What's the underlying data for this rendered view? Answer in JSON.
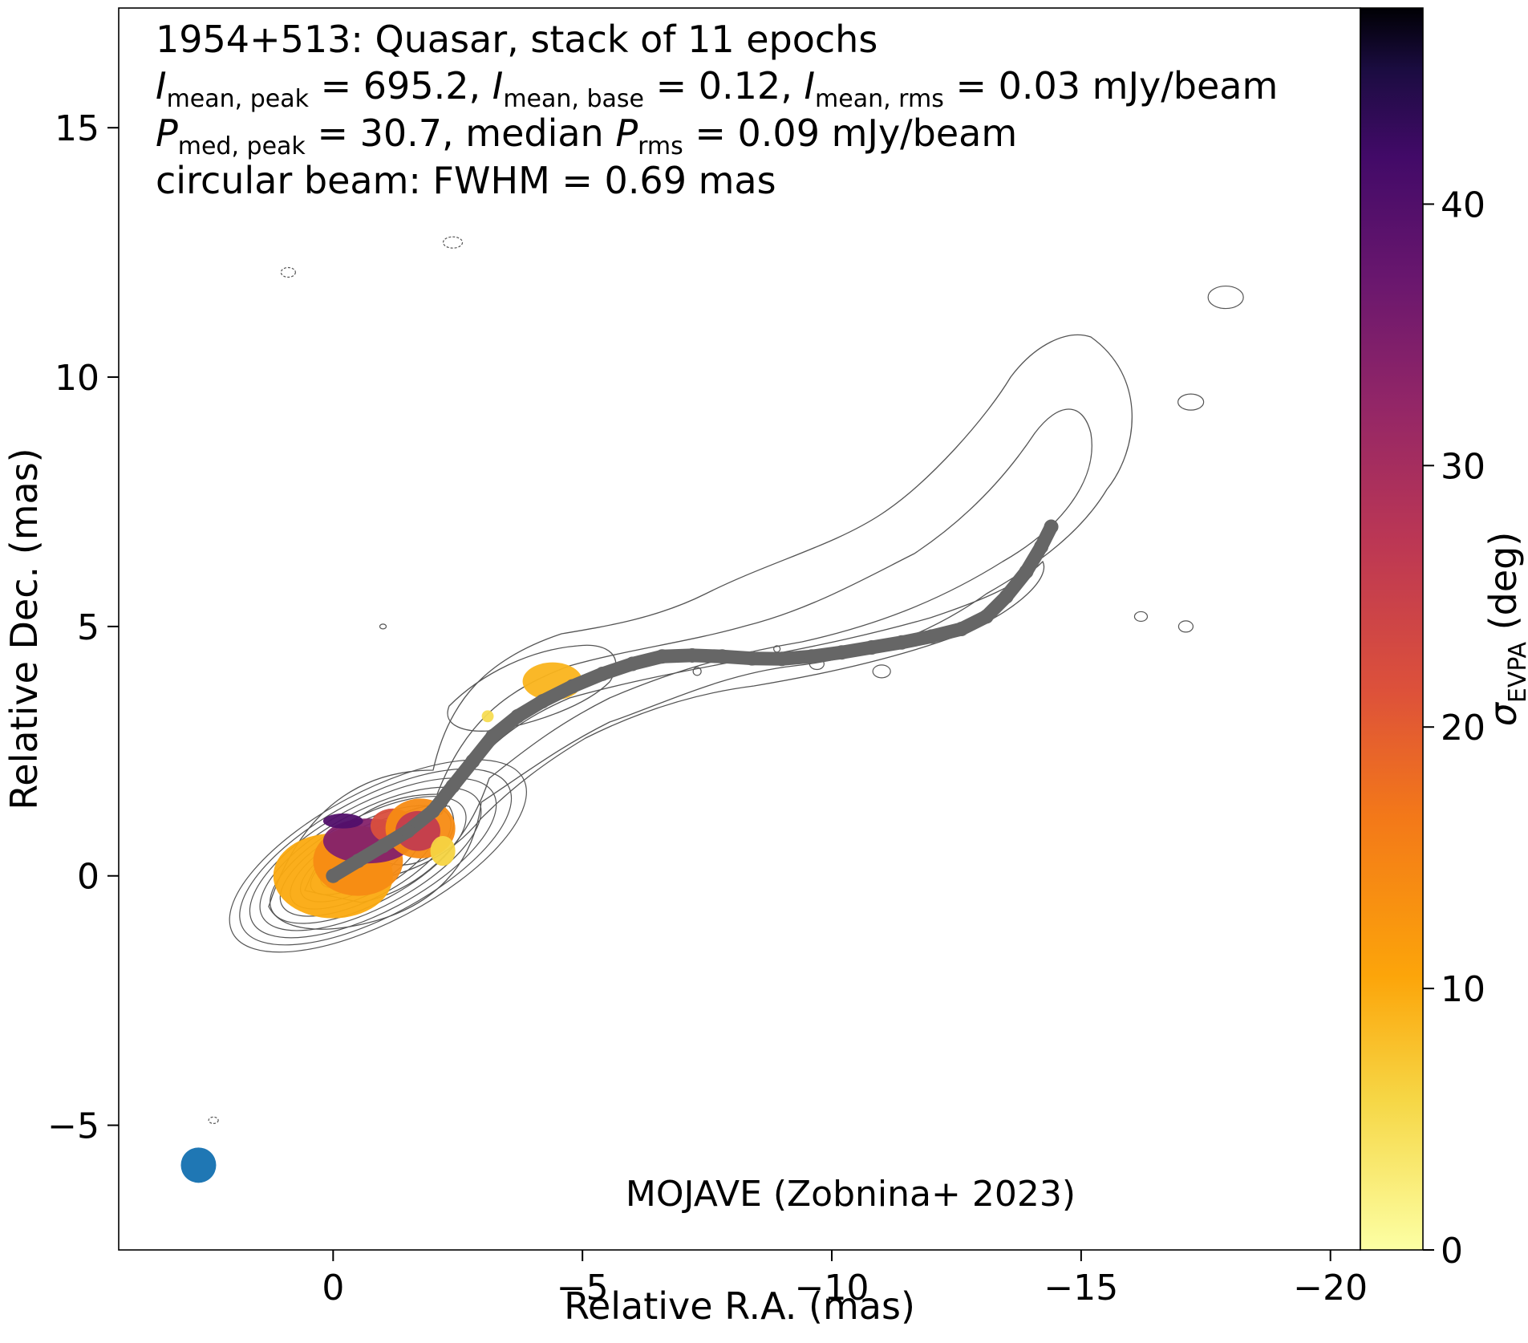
{
  "header": {
    "line1": "1954+513: Quasar, stack of 11 epochs",
    "line2": {
      "i_label": "I",
      "peak_sub": "mean, peak",
      "peak_value": "= 695.2,",
      "base_sub": "mean, base",
      "base_value": "= 0.12,",
      "rms_sub": "mean, rms",
      "rms_value": "= 0.03 mJy/beam"
    },
    "line3": {
      "p_label": "P",
      "peak_sub": "med, peak",
      "peak_value": "= 30.7, median",
      "rms_sub": "rms",
      "rms_value": "= 0.09 mJy/beam"
    },
    "line4": "circular beam: FWHM = 0.69 mas"
  },
  "credit": "MOJAVE (Zobnina+ 2023)",
  "colors": {
    "ridge": "#666666",
    "beam": "#1f77b4",
    "contour": "#555555"
  },
  "chart_data": {
    "type": "heatmap",
    "xlabel": "Relative R.A. (mas)",
    "ylabel": "Relative Dec. (mas)",
    "xlim": [
      4.3,
      -20.6
    ],
    "ylim": [
      -7.5,
      17.4
    ],
    "xticks": [
      0,
      -5,
      -10,
      -15,
      -20
    ],
    "xtick_labels": [
      "0",
      "−5",
      "−10",
      "−15",
      "−20"
    ],
    "yticks": [
      -5,
      0,
      5,
      10,
      15
    ],
    "ytick_labels": [
      "−5",
      "0",
      "5",
      "10",
      "15"
    ],
    "colorbar": {
      "label": "σ",
      "label_sub": "EVPA",
      "label_unit": "(deg)",
      "range": [
        0,
        47.5
      ],
      "ticks": [
        0,
        10,
        20,
        30,
        40
      ],
      "colormap": "inferno_r"
    },
    "beam": {
      "x": 2.7,
      "y": -5.8,
      "fwhm": 0.69
    },
    "ridge_line": {
      "x": [
        0,
        -0.5,
        -1.0,
        -1.5,
        -2.0,
        -2.4,
        -2.8,
        -3.2,
        -3.7,
        -4.2,
        -4.8,
        -5.4,
        -6.0,
        -6.6,
        -7.2,
        -7.8,
        -8.4,
        -9.0,
        -9.6,
        -10.2,
        -10.8,
        -11.4,
        -12.0,
        -12.6,
        -13.1,
        -13.5,
        -13.9,
        -14.2,
        -14.4
      ],
      "y": [
        0,
        0.3,
        0.6,
        0.9,
        1.3,
        1.8,
        2.3,
        2.8,
        3.2,
        3.5,
        3.8,
        4.05,
        4.25,
        4.4,
        4.42,
        4.4,
        4.36,
        4.35,
        4.4,
        4.48,
        4.58,
        4.68,
        4.8,
        4.95,
        5.2,
        5.6,
        6.1,
        6.6,
        7.0
      ]
    },
    "sigma_evpa_regions": [
      {
        "x": 0.0,
        "y": 0.0,
        "rx": 1.2,
        "ry": 0.85,
        "sigma": 10
      },
      {
        "x": -0.5,
        "y": 0.3,
        "rx": 0.9,
        "ry": 0.7,
        "sigma": 14
      },
      {
        "x": -0.7,
        "y": 0.7,
        "rx": 0.9,
        "ry": 0.45,
        "sigma": 34
      },
      {
        "x": -0.2,
        "y": 1.1,
        "rx": 0.4,
        "ry": 0.15,
        "sigma": 40
      },
      {
        "x": -1.2,
        "y": 1.0,
        "rx": 0.45,
        "ry": 0.35,
        "sigma": 22
      },
      {
        "x": -1.75,
        "y": 0.95,
        "rx": 0.7,
        "ry": 0.6,
        "sigma": 14
      },
      {
        "x": -1.7,
        "y": 0.9,
        "rx": 0.45,
        "ry": 0.4,
        "sigma": 26
      },
      {
        "x": -2.2,
        "y": 0.5,
        "rx": 0.25,
        "ry": 0.3,
        "sigma": 6
      },
      {
        "x": -4.4,
        "y": 3.9,
        "rx": 0.6,
        "ry": 0.38,
        "sigma": 9
      },
      {
        "x": -3.1,
        "y": 3.2,
        "rx": 0.12,
        "ry": 0.12,
        "sigma": 5
      }
    ],
    "contour_levels_note": ""
  }
}
